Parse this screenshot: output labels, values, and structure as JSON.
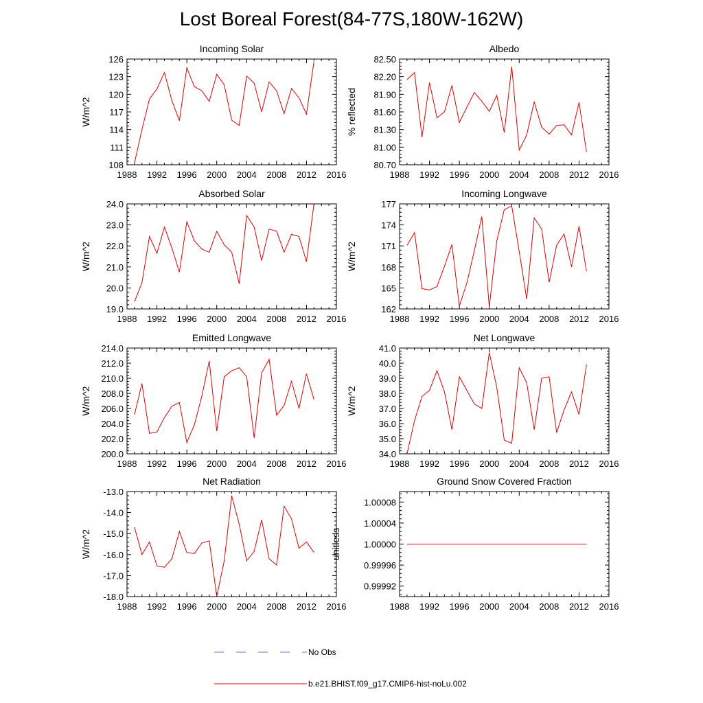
{
  "page": {
    "title": "Lost Boreal Forest(84-77S,180W-162W)"
  },
  "legend": [
    {
      "label": "No Obs",
      "color": "#6b6bd6",
      "dash": "dashed"
    },
    {
      "label": "b.e21.BHIST.f09_g17.CMIP6-hist-noLu.002",
      "color": "#e00000",
      "dash": "solid"
    }
  ],
  "chart_data": [
    {
      "type": "line",
      "title": "Incoming Solar",
      "ylabel": "W/m^2",
      "xlim": [
        1988,
        2016
      ],
      "ylim": [
        108,
        126
      ],
      "yticks": [
        "108",
        "111",
        "114",
        "117",
        "120",
        "123",
        "126"
      ],
      "xticks": [
        "1988",
        "1992",
        "1996",
        "2000",
        "2004",
        "2008",
        "2012",
        "2016"
      ],
      "x": [
        1989,
        1990,
        1991,
        1992,
        1993,
        1994,
        1995,
        1996,
        1997,
        1998,
        1999,
        2000,
        2001,
        2002,
        2003,
        2004,
        2005,
        2006,
        2007,
        2008,
        2009,
        2010,
        2011,
        2012,
        2013
      ],
      "series": [
        {
          "values": [
            108.3,
            114.0,
            119.2,
            120.9,
            123.7,
            118.9,
            115.5,
            124.5,
            121.3,
            120.6,
            118.8,
            123.4,
            121.6,
            115.6,
            114.7,
            123.1,
            121.9,
            117.0,
            122.1,
            120.6,
            116.7,
            121.0,
            119.4,
            116.6,
            125.6
          ]
        }
      ]
    },
    {
      "type": "line",
      "title": "Albedo",
      "ylabel": "% reflected",
      "xlim": [
        1988,
        2016
      ],
      "ylim": [
        80.7,
        82.5
      ],
      "yticks": [
        "80.70",
        "81.00",
        "81.30",
        "81.60",
        "81.90",
        "82.20",
        "82.50"
      ],
      "xticks": [
        "1988",
        "1992",
        "1996",
        "2000",
        "2004",
        "2008",
        "2012",
        "2016"
      ],
      "x": [
        1989,
        1990,
        1991,
        1992,
        1993,
        1994,
        1995,
        1996,
        1997,
        1998,
        1999,
        2000,
        2001,
        2002,
        2003,
        2004,
        2005,
        2006,
        2007,
        2008,
        2009,
        2010,
        2011,
        2012,
        2013
      ],
      "series": [
        {
          "values": [
            82.15,
            82.27,
            81.17,
            82.1,
            81.5,
            81.6,
            82.05,
            81.42,
            81.68,
            81.93,
            81.78,
            81.61,
            81.88,
            81.25,
            82.37,
            80.95,
            81.21,
            81.77,
            81.34,
            81.22,
            81.37,
            81.38,
            81.21,
            81.76,
            80.92
          ]
        }
      ]
    },
    {
      "type": "line",
      "title": "Absorbed Solar",
      "ylabel": "W/m^2",
      "xlim": [
        1988,
        2016
      ],
      "ylim": [
        19,
        24
      ],
      "yticks": [
        "19.0",
        "20.0",
        "21.0",
        "22.0",
        "23.0",
        "24.0"
      ],
      "xticks": [
        "1988",
        "1992",
        "1996",
        "2000",
        "2004",
        "2008",
        "2012",
        "2016"
      ],
      "x": [
        1989,
        1990,
        1991,
        1992,
        1993,
        1994,
        1995,
        1996,
        1997,
        1998,
        1999,
        2000,
        2001,
        2002,
        2003,
        2004,
        2005,
        2006,
        2007,
        2008,
        2009,
        2010,
        2011,
        2012,
        2013
      ],
      "series": [
        {
          "values": [
            19.35,
            20.25,
            22.45,
            21.65,
            22.9,
            21.9,
            20.75,
            23.15,
            22.25,
            21.85,
            21.7,
            22.7,
            22.05,
            21.7,
            20.2,
            23.45,
            22.9,
            21.3,
            22.8,
            22.7,
            21.7,
            22.55,
            22.45,
            21.25,
            24.0
          ]
        }
      ]
    },
    {
      "type": "line",
      "title": "Incoming Longwave",
      "ylabel": "W/m^2",
      "xlim": [
        1988,
        2016
      ],
      "ylim": [
        162,
        177
      ],
      "yticks": [
        "162",
        "165",
        "168",
        "171",
        "174",
        "177"
      ],
      "xticks": [
        "1988",
        "1992",
        "1996",
        "2000",
        "2004",
        "2008",
        "2012",
        "2016"
      ],
      "x": [
        1989,
        1990,
        1991,
        1992,
        1993,
        1994,
        1995,
        1996,
        1997,
        1998,
        1999,
        2000,
        2001,
        2002,
        2003,
        2004,
        2005,
        2006,
        2007,
        2008,
        2009,
        2010,
        2011,
        2012,
        2013
      ],
      "series": [
        {
          "values": [
            171.1,
            172.9,
            164.9,
            164.7,
            165.2,
            168.1,
            171.2,
            162.4,
            165.7,
            170.3,
            175.2,
            162.3,
            171.7,
            176.2,
            176.7,
            170.2,
            163.4,
            175.0,
            173.4,
            165.8,
            171.1,
            172.7,
            168.0,
            173.8,
            167.4
          ]
        }
      ]
    },
    {
      "type": "line",
      "title": "Emitted Longwave",
      "ylabel": "W/m^2",
      "xlim": [
        1988,
        2016
      ],
      "ylim": [
        200,
        214
      ],
      "yticks": [
        "200.0",
        "202.0",
        "204.0",
        "206.0",
        "208.0",
        "210.0",
        "212.0",
        "214.0"
      ],
      "xticks": [
        "1988",
        "1992",
        "1996",
        "2000",
        "2004",
        "2008",
        "2012",
        "2016"
      ],
      "x": [
        1989,
        1990,
        1991,
        1992,
        1993,
        1994,
        1995,
        1996,
        1997,
        1998,
        1999,
        2000,
        2001,
        2002,
        2003,
        2004,
        2005,
        2006,
        2007,
        2008,
        2009,
        2010,
        2011,
        2012,
        2013
      ],
      "series": [
        {
          "values": [
            205.2,
            209.3,
            202.7,
            202.9,
            204.8,
            206.3,
            206.8,
            201.5,
            203.8,
            207.6,
            212.3,
            203.0,
            210.2,
            211.0,
            211.4,
            210.2,
            202.1,
            210.7,
            212.5,
            205.1,
            206.4,
            209.6,
            206.0,
            210.6,
            207.2
          ]
        }
      ]
    },
    {
      "type": "line",
      "title": "Net Longwave",
      "ylabel": "W/m^2",
      "xlim": [
        1988,
        2016
      ],
      "ylim": [
        34,
        41
      ],
      "yticks": [
        "34.0",
        "35.0",
        "36.0",
        "37.0",
        "38.0",
        "39.0",
        "40.0",
        "41.0"
      ],
      "xticks": [
        "1988",
        "1992",
        "1996",
        "2000",
        "2004",
        "2008",
        "2012",
        "2016"
      ],
      "x": [
        1989,
        1990,
        1991,
        1992,
        1993,
        1994,
        1995,
        1996,
        1997,
        1998,
        1999,
        2000,
        2001,
        2002,
        2003,
        2004,
        2005,
        2006,
        2007,
        2008,
        2009,
        2010,
        2011,
        2012,
        2013
      ],
      "series": [
        {
          "values": [
            34.0,
            36.2,
            37.8,
            38.2,
            39.5,
            38.1,
            35.6,
            39.1,
            38.2,
            37.3,
            37.0,
            40.7,
            38.4,
            34.9,
            34.7,
            39.7,
            38.7,
            35.6,
            39.0,
            39.1,
            35.4,
            36.9,
            38.1,
            36.6,
            39.9
          ]
        }
      ]
    },
    {
      "type": "line",
      "title": "Net Radiation",
      "ylabel": "W/m^2",
      "xlim": [
        1988,
        2016
      ],
      "ylim": [
        -18,
        -13
      ],
      "yticks": [
        "-18.0",
        "-17.0",
        "-16.0",
        "-15.0",
        "-14.0",
        "-13.0"
      ],
      "xticks": [
        "1988",
        "1992",
        "1996",
        "2000",
        "2004",
        "2008",
        "2012",
        "2016"
      ],
      "x": [
        1989,
        1990,
        1991,
        1992,
        1993,
        1994,
        1995,
        1996,
        1997,
        1998,
        1999,
        2000,
        2001,
        2002,
        2003,
        2004,
        2005,
        2006,
        2007,
        2008,
        2009,
        2010,
        2011,
        2012,
        2013
      ],
      "series": [
        {
          "values": [
            -14.7,
            -16.0,
            -15.4,
            -16.55,
            -16.6,
            -16.2,
            -14.9,
            -15.9,
            -15.95,
            -15.45,
            -15.35,
            -18.0,
            -16.3,
            -13.2,
            -14.55,
            -16.3,
            -15.85,
            -14.35,
            -16.2,
            -16.5,
            -13.7,
            -14.3,
            -15.7,
            -15.4,
            -15.9
          ]
        }
      ]
    },
    {
      "type": "line",
      "title": "Ground Snow Covered Fraction",
      "ylabel": "unitless",
      "xlim": [
        1988,
        2016
      ],
      "ylim": [
        0.9999,
        1.0001
      ],
      "yticks": [
        "0.99992",
        "0.99996",
        "1.00000",
        "1.00004",
        "1.00008"
      ],
      "ytick_values": [
        0.99992,
        0.99996,
        1.0,
        1.00004,
        1.00008
      ],
      "xticks": [
        "1988",
        "1992",
        "1996",
        "2000",
        "2004",
        "2008",
        "2012",
        "2016"
      ],
      "x": [
        1989,
        1990,
        1991,
        1992,
        1993,
        1994,
        1995,
        1996,
        1997,
        1998,
        1999,
        2000,
        2001,
        2002,
        2003,
        2004,
        2005,
        2006,
        2007,
        2008,
        2009,
        2010,
        2011,
        2012,
        2013
      ],
      "series": [
        {
          "values": [
            1,
            1,
            1,
            1,
            1,
            1,
            1,
            1,
            1,
            1,
            1,
            1,
            1,
            1,
            1,
            1,
            1,
            1,
            1,
            1,
            1,
            1,
            1,
            1,
            1
          ]
        }
      ]
    }
  ]
}
